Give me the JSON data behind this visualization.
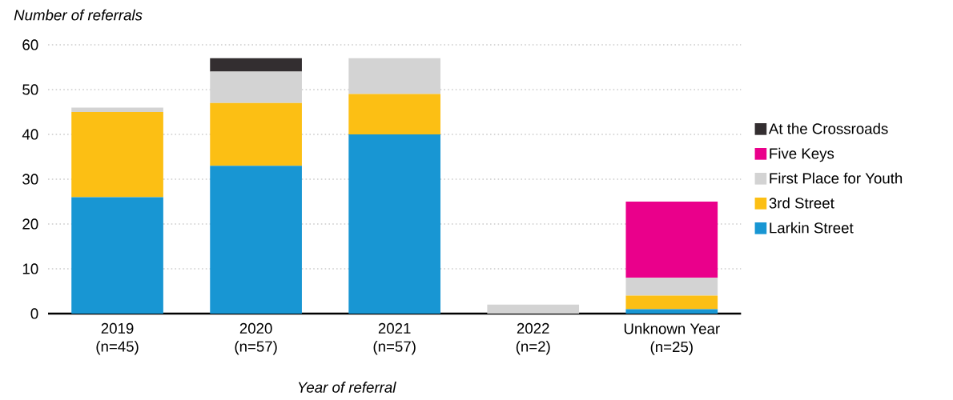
{
  "chart_data": {
    "type": "bar",
    "stacked": true,
    "ylabel": "Number of referrals",
    "xlabel": "Year of referral",
    "categories": [
      "2019\n(n=45)",
      "2020\n(n=57)",
      "2021\n(n=57)",
      "2022\n(n=2)",
      "Unknown Year\n(n=25)"
    ],
    "series": [
      {
        "name": "Larkin Street",
        "color": "#1896d3",
        "values": [
          26,
          33,
          40,
          0,
          1
        ]
      },
      {
        "name": "3rd Street",
        "color": "#fcbf14",
        "values": [
          19,
          14,
          9,
          0,
          3
        ]
      },
      {
        "name": "First Place for Youth",
        "color": "#d3d3d3",
        "values": [
          1,
          7,
          8,
          2,
          4
        ]
      },
      {
        "name": "Five Keys",
        "color": "#ea008b",
        "values": [
          0,
          0,
          0,
          0,
          17
        ]
      },
      {
        "name": "At the Crossroads",
        "color": "#332e30",
        "values": [
          0,
          3,
          0,
          0,
          0
        ]
      }
    ],
    "ylim": [
      0,
      60
    ],
    "yticks": [
      0,
      10,
      20,
      30,
      40,
      50,
      60
    ],
    "grid": "y",
    "legend": "right"
  }
}
